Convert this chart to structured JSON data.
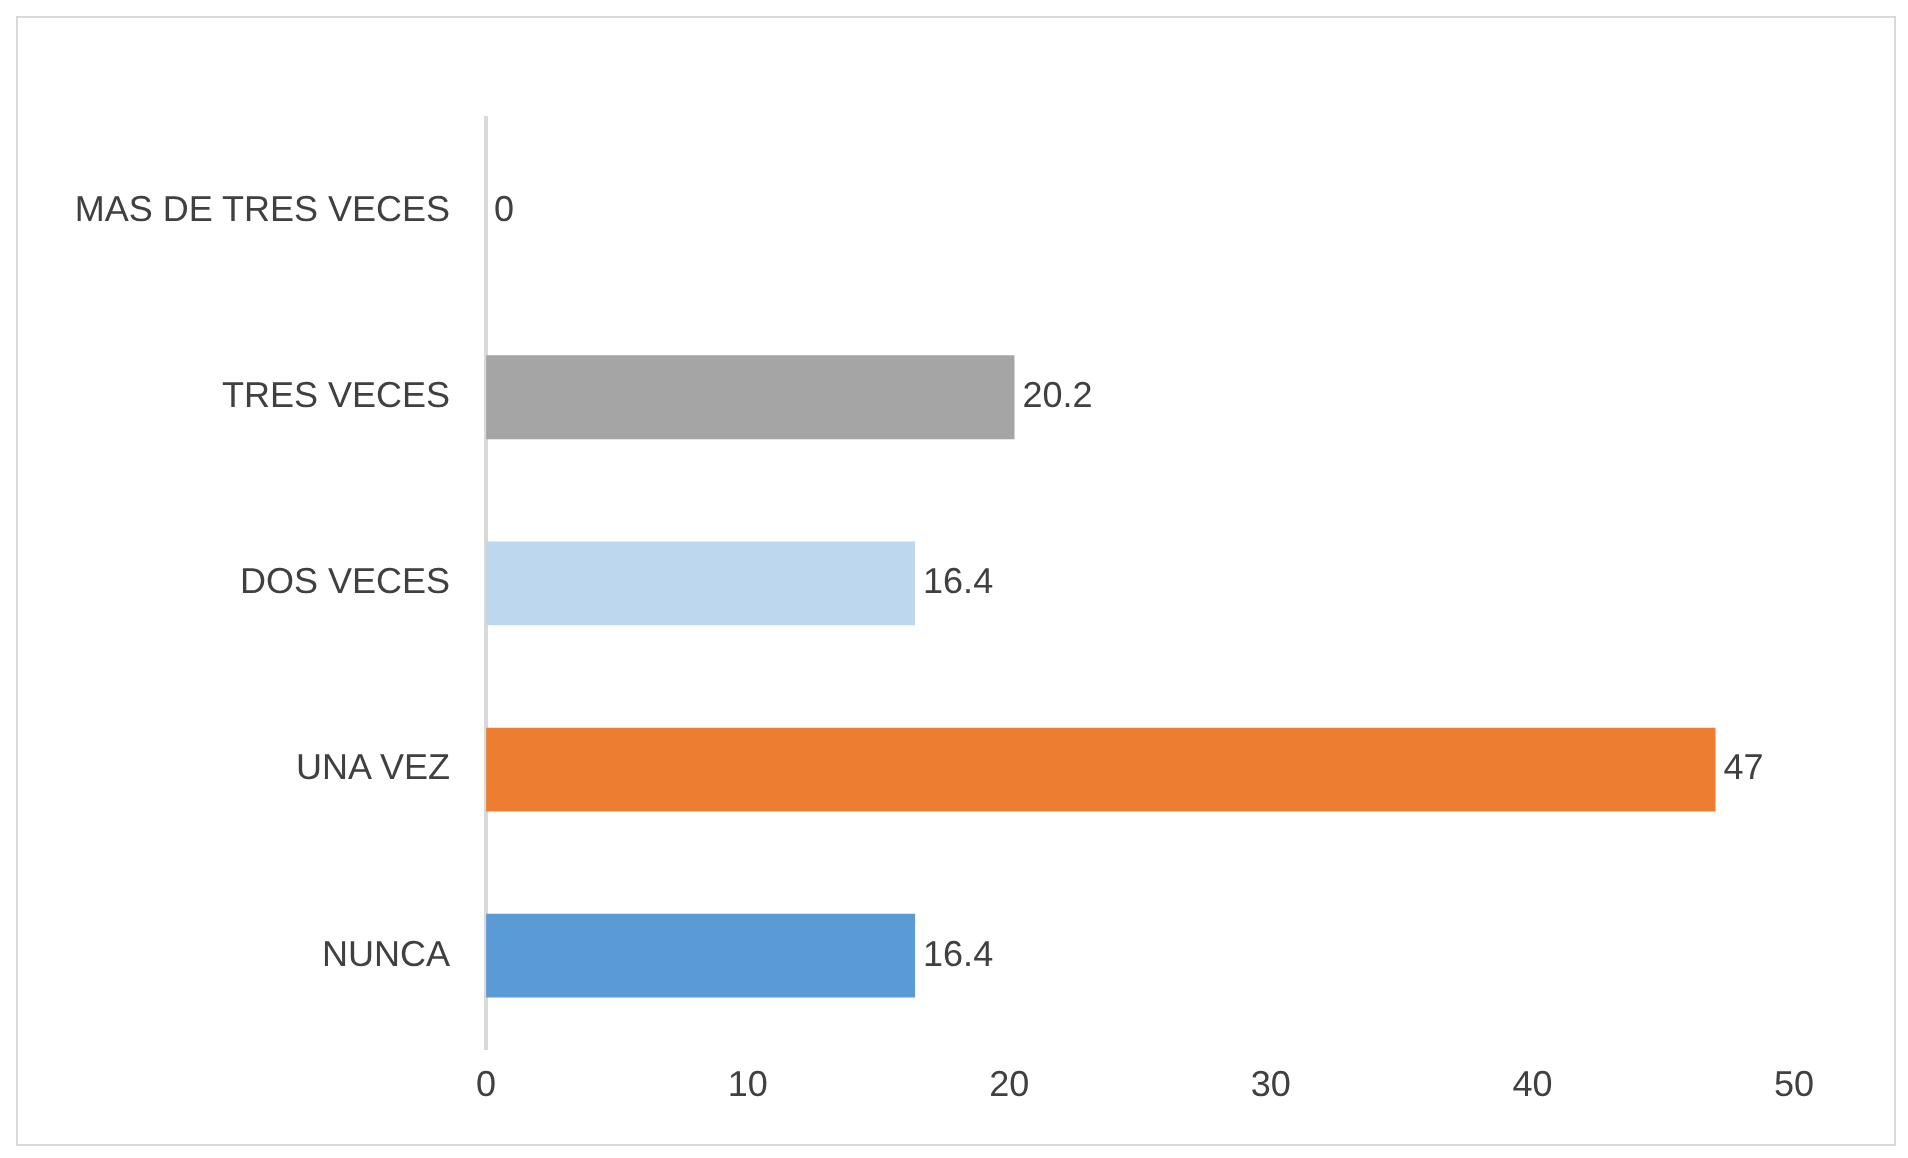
{
  "chart_data": {
    "type": "bar",
    "orientation": "horizontal",
    "categories": [
      "MAS DE TRES VECES",
      "TRES VECES",
      "DOS VECES",
      "UNA VEZ",
      "NUNCA"
    ],
    "values": [
      0,
      20.2,
      16.4,
      47,
      16.4
    ],
    "colors": [
      "#1f3a5a",
      "#a5a5a5",
      "#bdd7ee",
      "#ed7d31",
      "#5b9bd5"
    ],
    "xlim": [
      0,
      50
    ],
    "xticks": [
      0,
      10,
      20,
      30,
      40,
      50
    ],
    "grid": false,
    "legend": false,
    "data_labels": true
  }
}
